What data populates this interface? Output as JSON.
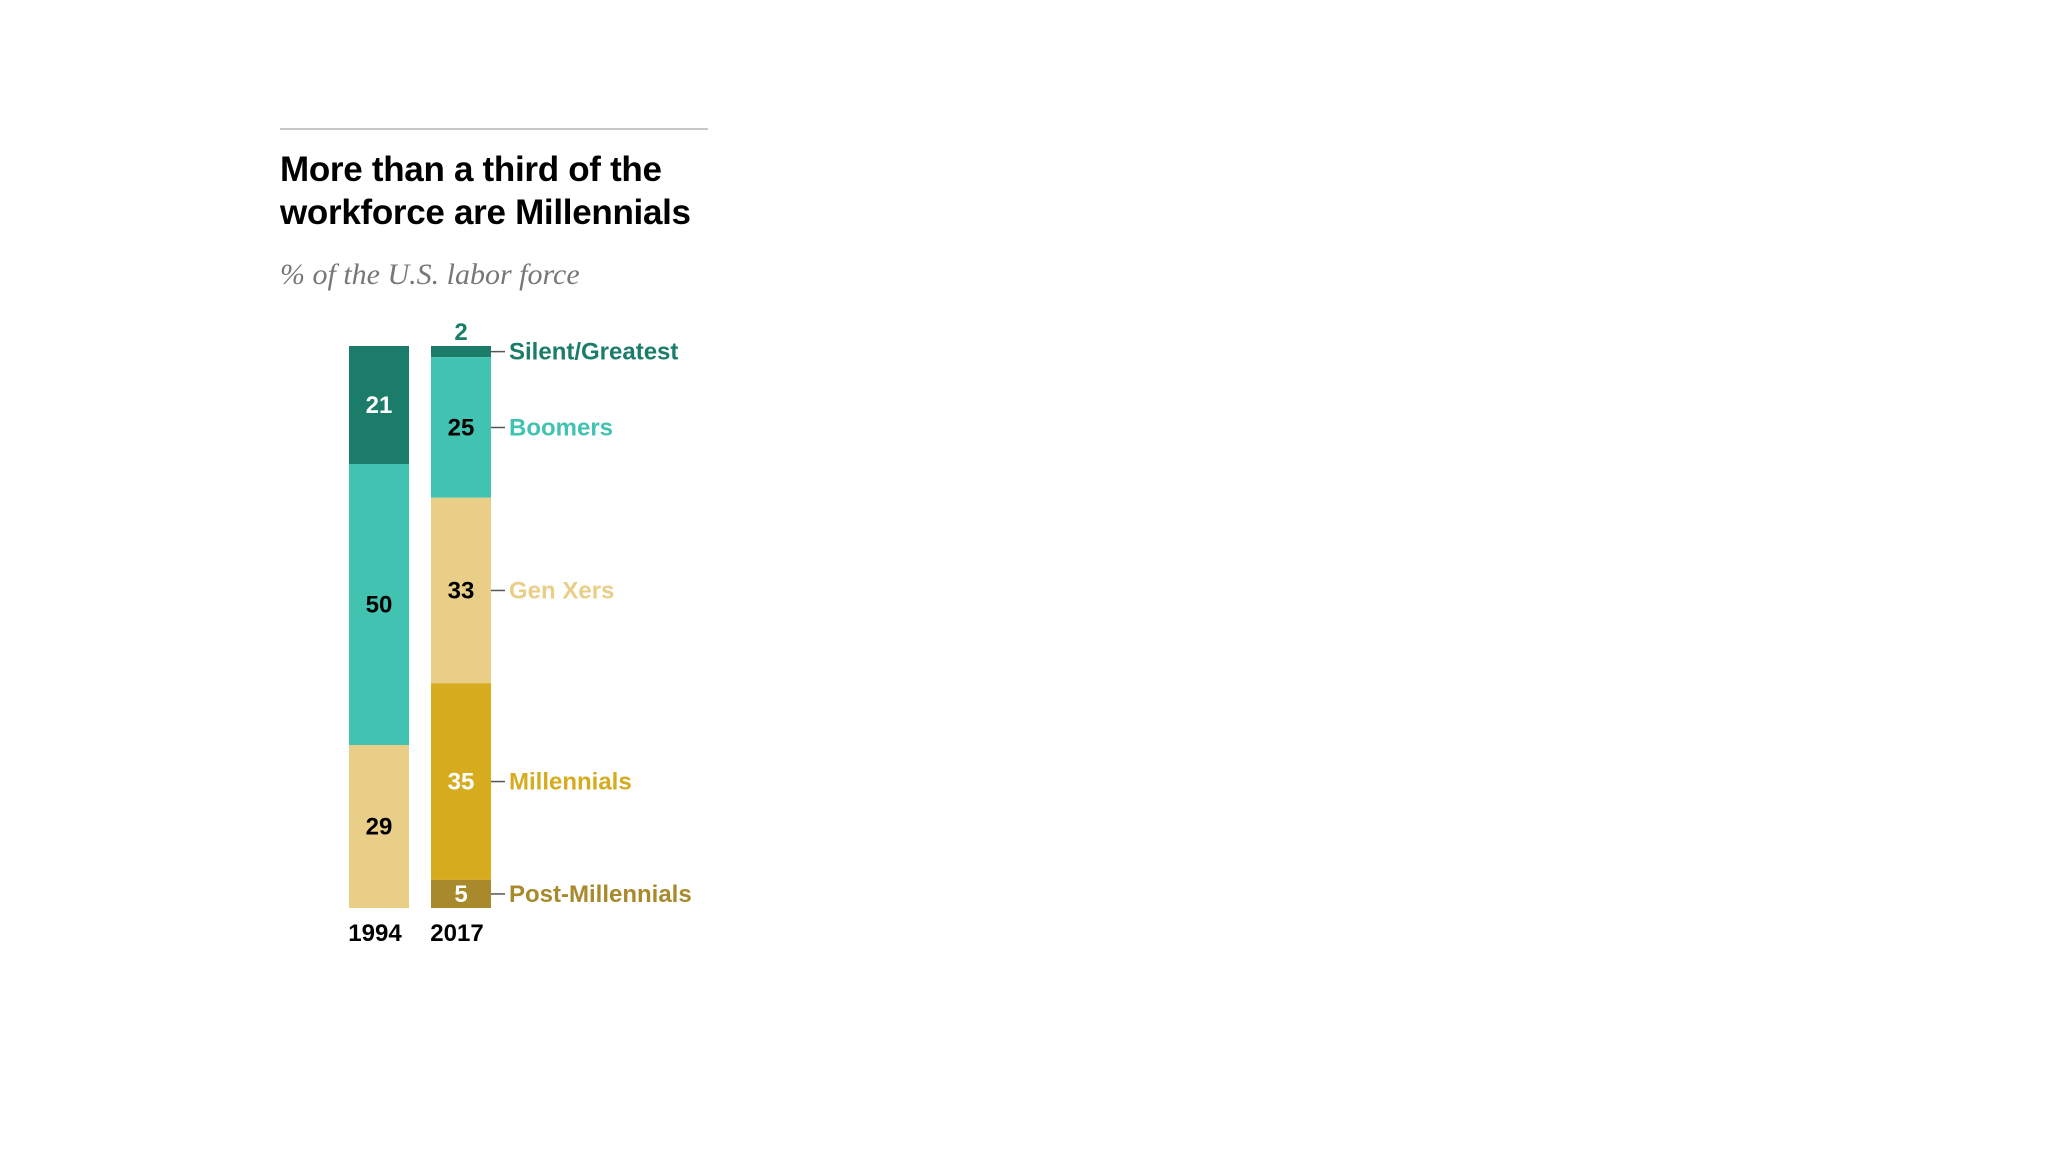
{
  "chart_data": {
    "type": "bar",
    "stacked": true,
    "title": "More than a third of the workforce are Millennials",
    "subtitle": "% of the U.S. labor force",
    "categories": [
      "1994",
      "2017"
    ],
    "series": [
      {
        "name": "Silent/Greatest",
        "values": [
          21,
          2
        ],
        "color": "#1b7c6a",
        "text_color": "#ffffff"
      },
      {
        "name": "Boomers",
        "values": [
          50,
          25
        ],
        "color": "#42c2b1",
        "text_color": "#000000"
      },
      {
        "name": "Gen Xers",
        "values": [
          29,
          33
        ],
        "color": "#e8ce87",
        "text_color": "#000000"
      },
      {
        "name": "Millennials",
        "values": [
          0,
          35
        ],
        "color": "#d6ab1e",
        "text_color": "#ffffff"
      },
      {
        "name": "Post-Millennials",
        "values": [
          0,
          5
        ],
        "color": "#a8892c",
        "text_color": "#ffffff"
      }
    ],
    "series_label_colors": [
      "#1b7c6a",
      "#42c2b1",
      "#e8ce87",
      "#d6ab1e",
      "#a8892c"
    ],
    "labels_category": "2017",
    "ylim": [
      0,
      100
    ],
    "grid": false,
    "legend": "right"
  }
}
